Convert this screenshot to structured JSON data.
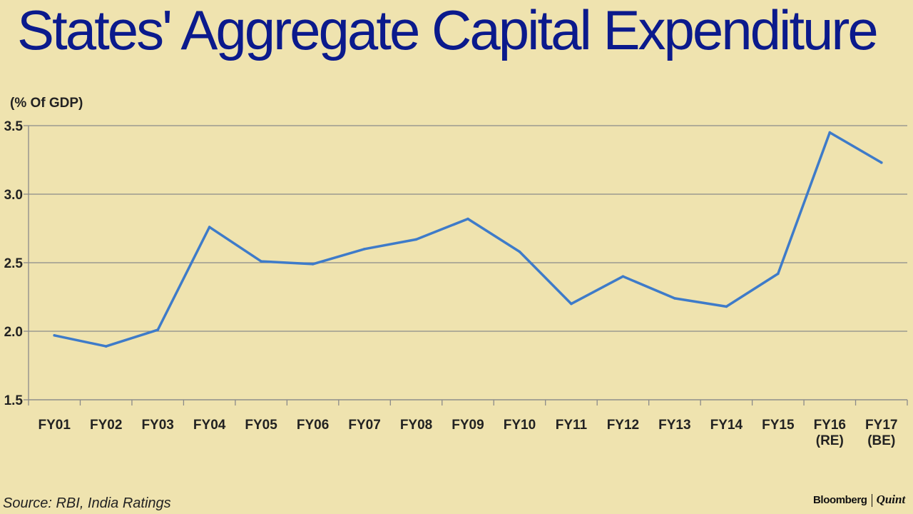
{
  "title": "States' Aggregate Capital Expenditure",
  "unit_label": "(% Of GDP)",
  "source": "Source: RBI, India Ratings",
  "brand": {
    "name": "Bloomberg",
    "suffix": "Quint"
  },
  "colors": {
    "background": "#EFE3AF",
    "title": "#0B1A8C",
    "line": "#3E7BC9",
    "grid": "#8A8A8A"
  },
  "chart_data": {
    "type": "line",
    "categories": [
      "FY01",
      "FY02",
      "FY03",
      "FY04",
      "FY05",
      "FY06",
      "FY07",
      "FY08",
      "FY09",
      "FY10",
      "FY11",
      "FY12",
      "FY13",
      "FY14",
      "FY15",
      "FY16\n(RE)",
      "FY17\n(BE)"
    ],
    "values": [
      1.97,
      1.89,
      2.01,
      2.76,
      2.51,
      2.49,
      2.6,
      2.67,
      2.82,
      2.58,
      2.2,
      2.4,
      2.24,
      2.18,
      2.42,
      3.45,
      3.23
    ],
    "yticks": [
      "3.5",
      "3.0",
      "2.5",
      "2.0",
      "1.5"
    ],
    "ylim": [
      1.5,
      3.5
    ],
    "title": "States' Aggregate Capital Expenditure",
    "ylabel": "(% Of GDP)",
    "xlabel": "",
    "grid": true,
    "legend": "none"
  }
}
